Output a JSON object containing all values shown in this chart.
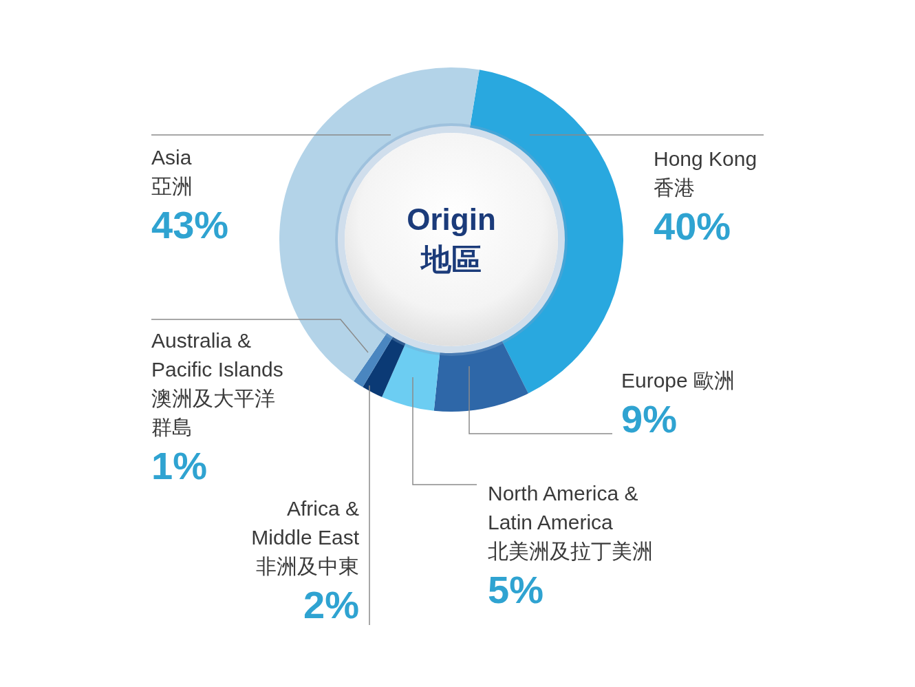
{
  "chart_data": {
    "type": "donut",
    "title": "Origin\n地區",
    "categories": [
      "Hong Kong\n香港",
      "Europe 歐洲",
      "North America &\nLatin America\n北美洲及拉丁美洲",
      "Africa &\nMiddle East\n非洲及中東",
      "Australia &\nPacific Islands\n澳洲及大平洋群島",
      "Asia\n亞洲"
    ],
    "values": [
      40,
      9,
      5,
      2,
      1,
      43
    ],
    "colors": [
      "#29a8df",
      "#2e67a8",
      "#6ccdf2",
      "#0b3a75",
      "#4a86c0",
      "#b3d3e8"
    ],
    "value_labels": [
      "40%",
      "9%",
      "5%",
      "2%",
      "1%",
      "43%"
    ]
  }
}
